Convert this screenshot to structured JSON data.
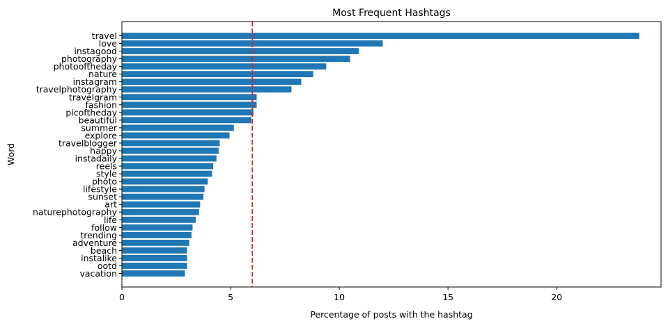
{
  "chart_data": {
    "type": "bar",
    "orientation": "horizontal",
    "title": "Most Frequent Hashtags",
    "xlabel": "Percentage of posts with the hashtag",
    "ylabel": "Word",
    "xlim": [
      0,
      24.8
    ],
    "xticks": [
      0,
      5,
      10,
      15,
      20
    ],
    "grid": false,
    "bar_color": "#1f77b4",
    "reference_line": {
      "x": 6.0,
      "color": "#d62728",
      "style": "dashed"
    },
    "categories": [
      "travel",
      "love",
      "instagood",
      "photography",
      "photooftheday",
      "nature",
      "instagram",
      "travelphotography",
      "travelgram",
      "fashion",
      "picoftheday",
      "beautiful",
      "summer",
      "explore",
      "travelblogger",
      "happy",
      "instadaily",
      "reels",
      "style",
      "photo",
      "lifestyle",
      "sunset",
      "art",
      "naturephotography",
      "life",
      "follow",
      "trending",
      "adventure",
      "beach",
      "instalike",
      "ootd",
      "vacation"
    ],
    "values": [
      23.8,
      12.0,
      10.9,
      10.5,
      9.4,
      8.8,
      8.25,
      7.8,
      6.2,
      6.2,
      6.05,
      5.95,
      5.15,
      4.95,
      4.5,
      4.45,
      4.35,
      4.2,
      4.15,
      3.95,
      3.8,
      3.75,
      3.6,
      3.55,
      3.4,
      3.25,
      3.2,
      3.1,
      3.0,
      3.0,
      3.0,
      2.9
    ]
  }
}
